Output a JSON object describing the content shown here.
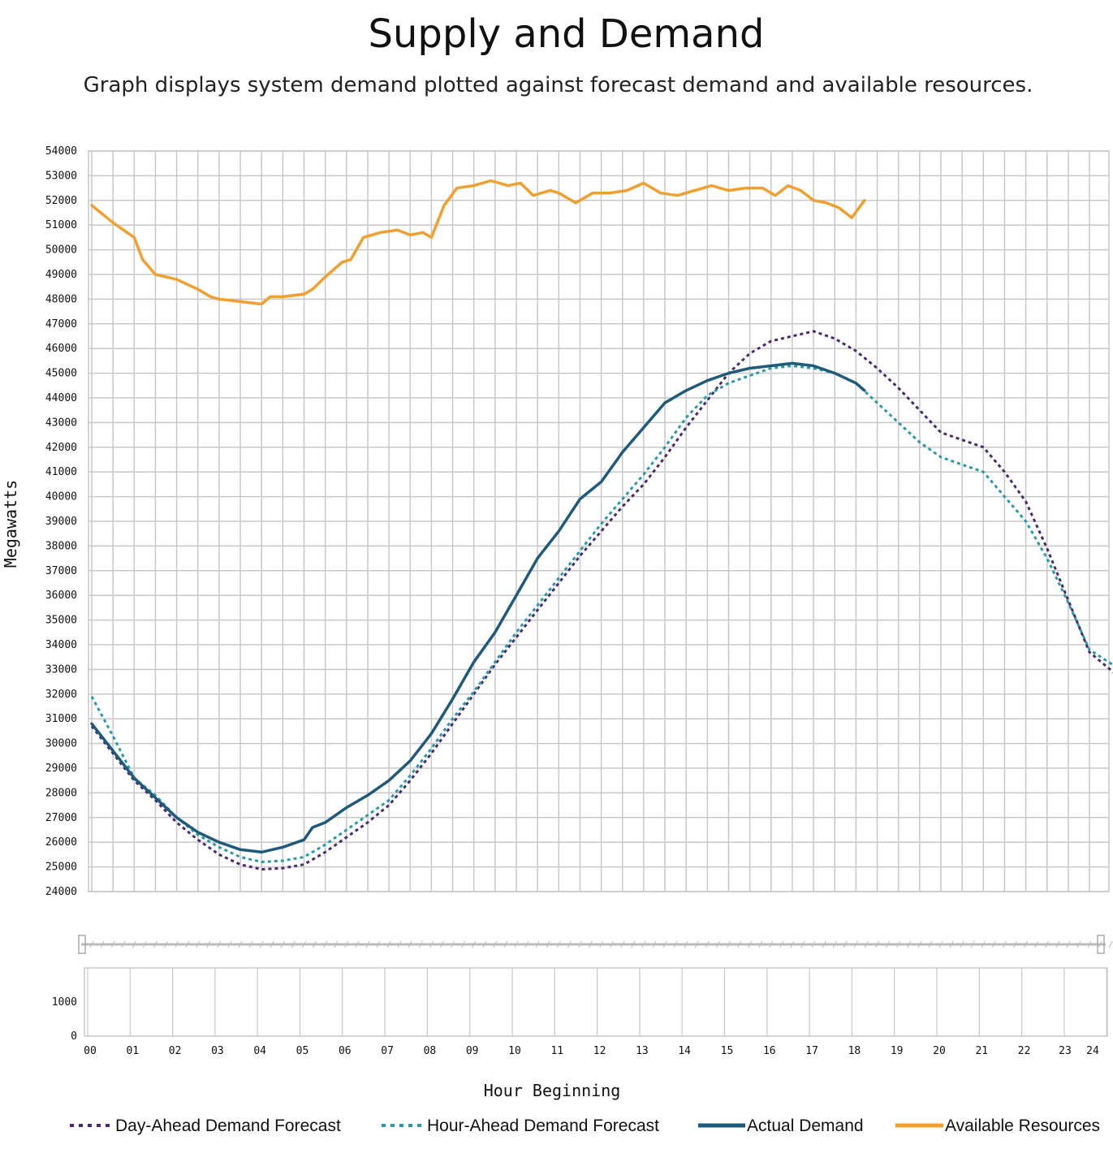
{
  "title": "Supply and Demand",
  "subtitle": "Graph displays system demand plotted against forecast demand and available resources.",
  "chart_data": {
    "type": "line",
    "ylabel": "Megawatts",
    "xlabel": "Hour Beginning",
    "ylim": [
      24000,
      54000
    ],
    "xlim": [
      0,
      24.6
    ],
    "y_ticks": [
      "54000",
      "53000",
      "52000",
      "51000",
      "50000",
      "49000",
      "48000",
      "47000",
      "46000",
      "45000",
      "44000",
      "43000",
      "42000",
      "41000",
      "40000",
      "39000",
      "38000",
      "37000",
      "36000",
      "35000",
      "34000",
      "33000",
      "32000",
      "31000",
      "30000",
      "29000",
      "28000",
      "27000",
      "26000",
      "25000",
      "24000"
    ],
    "x_ticks": [
      "00",
      "01",
      "02",
      "03",
      "04",
      "05",
      "06",
      "07",
      "08",
      "09",
      "10",
      "11",
      "12",
      "13",
      "14",
      "15",
      "16",
      "17",
      "18",
      "19",
      "20",
      "21",
      "22",
      "23",
      "24"
    ],
    "lower_panel": {
      "ylim": [
        0,
        2000
      ],
      "y_ticks": [
        "1000",
        "0"
      ]
    },
    "grid": true,
    "legend_position": "bottom",
    "colors": {
      "day_ahead": "#4a2a6e",
      "hour_ahead": "#2a9aa8",
      "actual": "#1f5a7a",
      "available": "#f0a030",
      "grid": "#c8c8c8"
    },
    "series": [
      {
        "name": "Day-Ahead Demand Forecast",
        "key": "day_ahead",
        "style": "dotted",
        "x": [
          0,
          0.5,
          1,
          1.5,
          2,
          2.5,
          3,
          3.5,
          4,
          4.5,
          5,
          5.5,
          6,
          6.5,
          7,
          7.5,
          8,
          8.5,
          9,
          9.5,
          10,
          10.5,
          11,
          11.5,
          12,
          12.5,
          13,
          13.5,
          14,
          14.5,
          15,
          15.5,
          16,
          16.5,
          17,
          17.5,
          18,
          18.5,
          19,
          19.5,
          20,
          20.5,
          21,
          21.5,
          22,
          22.5,
          23,
          23.5,
          24.4
        ],
        "values": [
          30700,
          29600,
          28500,
          27700,
          26800,
          26100,
          25500,
          25100,
          24900,
          24950,
          25100,
          25600,
          26200,
          26800,
          27500,
          28500,
          29600,
          30800,
          32000,
          33200,
          34300,
          35400,
          36500,
          37600,
          38600,
          39600,
          40500,
          41600,
          42800,
          43900,
          45000,
          45800,
          46300,
          46500,
          46700,
          46400,
          45900,
          45200,
          44400,
          43500,
          42600,
          42300,
          42000,
          41000,
          39800,
          37900,
          35800,
          33700,
          32400
        ]
      },
      {
        "name": "Hour-Ahead Demand Forecast",
        "key": "hour_ahead",
        "style": "dotted",
        "x": [
          0,
          0.5,
          1,
          1.5,
          2,
          2.5,
          3,
          3.5,
          4,
          4.5,
          5,
          5.5,
          6,
          6.5,
          7,
          7.5,
          8,
          8.5,
          9,
          9.5,
          10,
          10.5,
          11,
          11.5,
          12,
          12.5,
          13,
          13.5,
          14,
          14.5,
          15,
          15.5,
          16,
          16.5,
          17,
          17.5,
          18,
          18.5,
          19,
          19.5,
          20,
          20.5,
          21,
          21.5,
          22,
          22.5,
          23,
          23.5,
          24.4
        ],
        "values": [
          31900,
          30300,
          28600,
          27900,
          27000,
          26300,
          25800,
          25400,
          25200,
          25250,
          25400,
          25900,
          26500,
          27100,
          27700,
          28700,
          29800,
          31000,
          32100,
          33300,
          34500,
          35600,
          36700,
          37800,
          38900,
          39900,
          40900,
          42000,
          43200,
          44100,
          44600,
          44900,
          45200,
          45300,
          45200,
          45000,
          44600,
          43800,
          43000,
          42200,
          41600,
          41300,
          41000,
          40000,
          39000,
          37500,
          35700,
          33800,
          32800
        ]
      },
      {
        "name": "Actual Demand",
        "key": "actual",
        "style": "solid",
        "x": [
          0,
          0.5,
          1,
          1.5,
          2,
          2.5,
          3,
          3.5,
          4,
          4.5,
          5,
          5.2,
          5.5,
          6,
          6.5,
          7,
          7.5,
          8,
          8.5,
          9,
          9.5,
          10,
          10.5,
          11,
          11.5,
          12,
          12.5,
          13,
          13.5,
          14,
          14.5,
          15,
          15.5,
          16,
          16.5,
          17,
          17.5,
          18,
          18.2
        ],
        "values": [
          30800,
          29700,
          28600,
          27800,
          27000,
          26400,
          26000,
          25700,
          25600,
          25800,
          26100,
          26600,
          26800,
          27400,
          27900,
          28500,
          29300,
          30400,
          31800,
          33300,
          34500,
          36000,
          37500,
          38600,
          39900,
          40600,
          41800,
          42800,
          43800,
          44300,
          44700,
          45000,
          45200,
          45300,
          45400,
          45300,
          45000,
          44600,
          44300
        ]
      },
      {
        "name": "Available Resources",
        "key": "available",
        "style": "solid",
        "x": [
          0,
          0.5,
          1,
          1.2,
          1.5,
          2,
          2.5,
          2.8,
          3,
          3.5,
          4,
          4.2,
          4.5,
          5,
          5.2,
          5.5,
          5.9,
          6.1,
          6.4,
          6.8,
          7.2,
          7.5,
          7.8,
          8,
          8.3,
          8.6,
          9,
          9.4,
          9.8,
          10.1,
          10.4,
          10.8,
          11,
          11.4,
          11.8,
          12.2,
          12.6,
          13,
          13.4,
          13.8,
          14.2,
          14.6,
          15,
          15.4,
          15.8,
          16.1,
          16.4,
          16.7,
          17,
          17.3,
          17.6,
          17.9,
          18.2
        ],
        "values": [
          51800,
          51100,
          50500,
          49600,
          49000,
          48800,
          48400,
          48100,
          48000,
          47900,
          47800,
          48100,
          48100,
          48200,
          48400,
          48900,
          49500,
          49600,
          50500,
          50700,
          50800,
          50600,
          50700,
          50500,
          51800,
          52500,
          52600,
          52800,
          52600,
          52700,
          52200,
          52400,
          52300,
          51900,
          52300,
          52300,
          52400,
          52700,
          52300,
          52200,
          52400,
          52600,
          52400,
          52500,
          52500,
          52200,
          52600,
          52400,
          52000,
          51900,
          51700,
          51300,
          52000
        ]
      }
    ]
  }
}
